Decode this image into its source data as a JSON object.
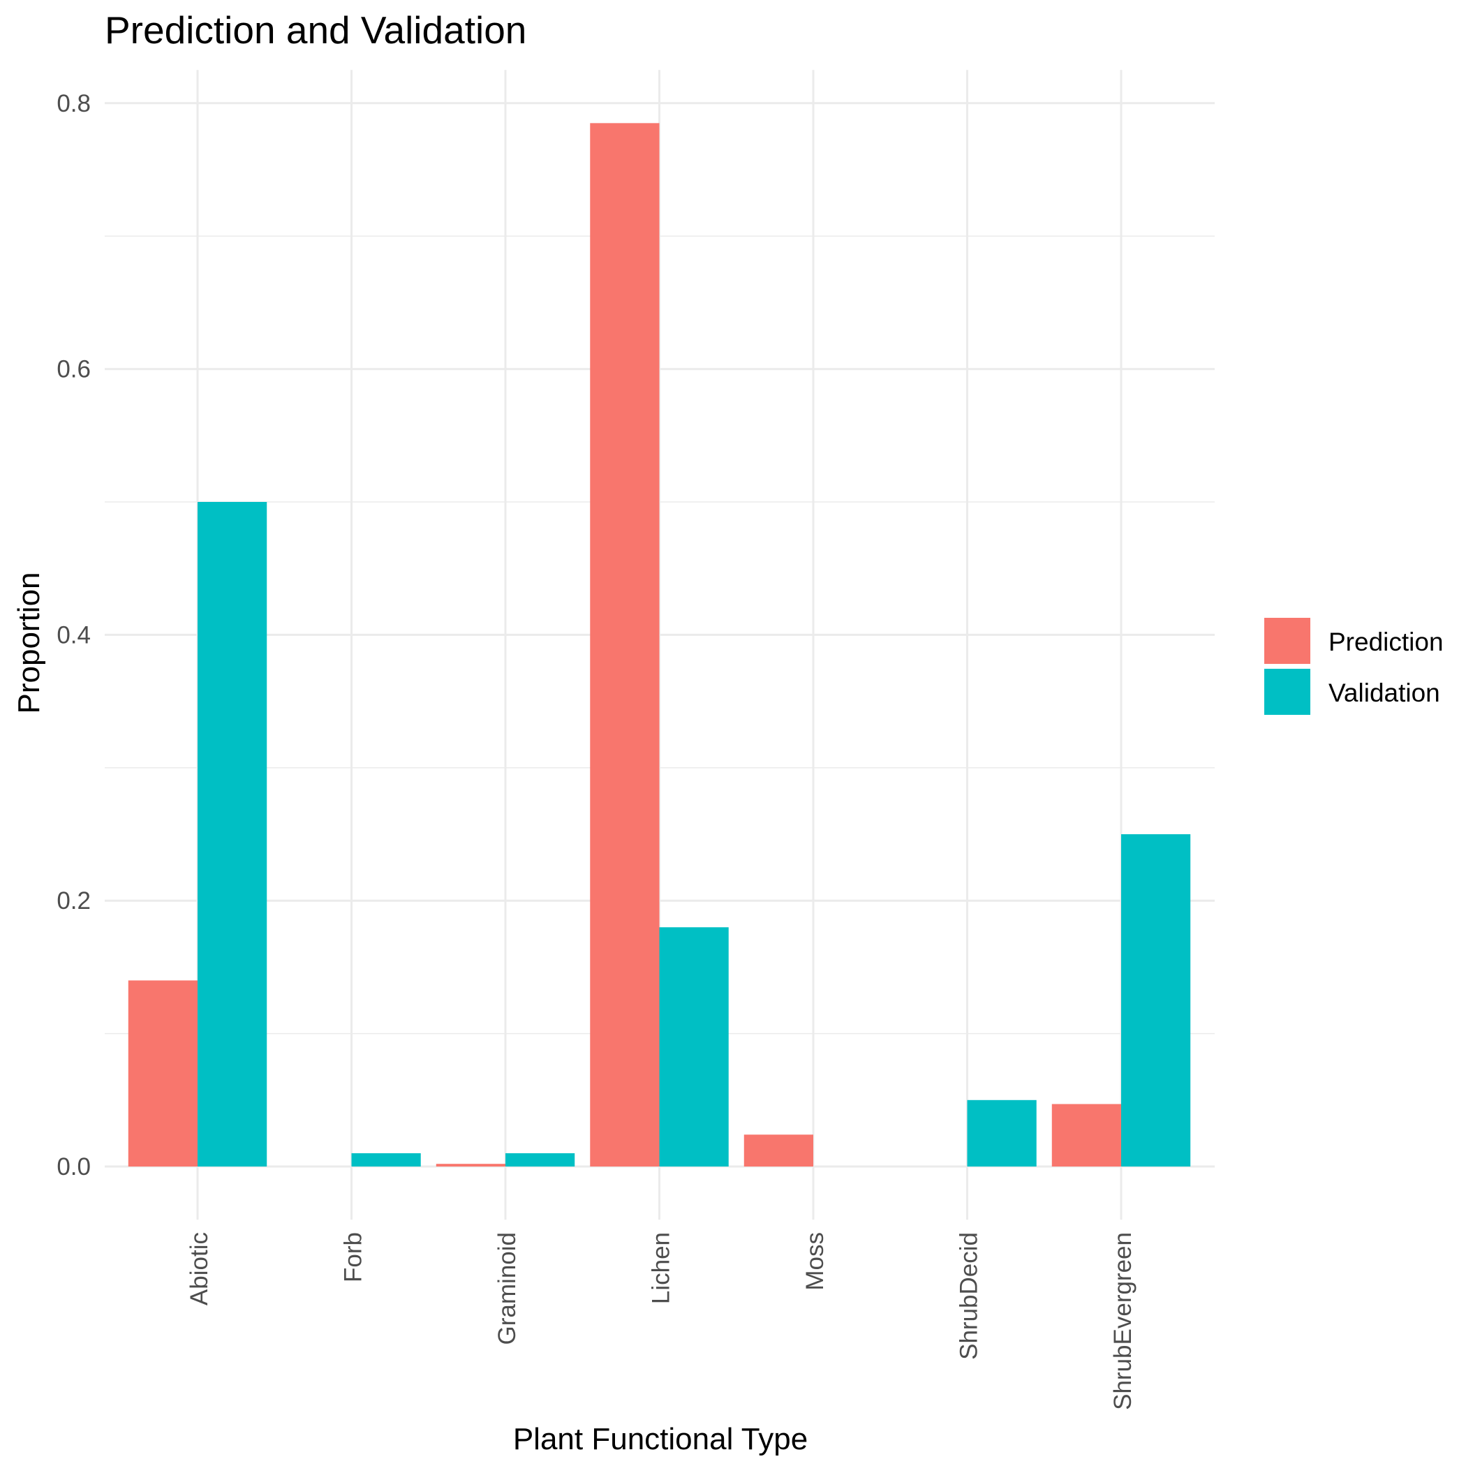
{
  "chart_data": {
    "type": "bar",
    "title": "Prediction and Validation",
    "xlabel": "Plant Functional Type",
    "ylabel": "Proportion",
    "categories": [
      "Abiotic",
      "Forb",
      "Graminoid",
      "Lichen",
      "Moss",
      "ShrubDecid",
      "ShrubEvergreen"
    ],
    "series": [
      {
        "name": "Prediction",
        "color": "#F8766D",
        "values": [
          0.14,
          0.0,
          0.002,
          0.785,
          0.024,
          0.0,
          0.047
        ]
      },
      {
        "name": "Validation",
        "color": "#00BFC4",
        "values": [
          0.5,
          0.01,
          0.01,
          0.18,
          0.0,
          0.05,
          0.25
        ]
      }
    ],
    "ylim": [
      -0.04,
      0.825
    ],
    "y_ticks": [
      0.0,
      0.2,
      0.4,
      0.6,
      0.8
    ],
    "y_tick_labels": [
      "0.0",
      "0.2",
      "0.4",
      "0.6",
      "0.8"
    ],
    "grid": true,
    "legend_position": "right"
  }
}
